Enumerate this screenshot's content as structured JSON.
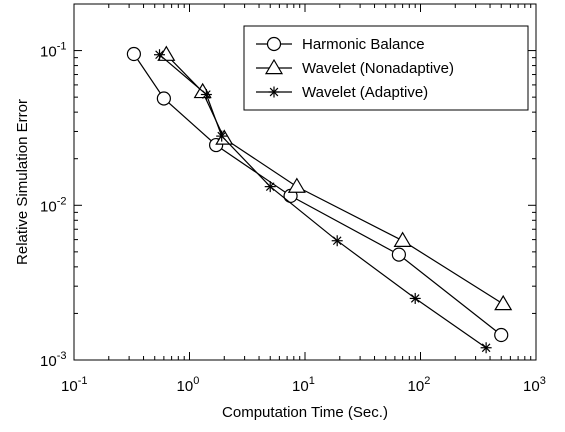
{
  "chart_data": {
    "type": "line",
    "xlabel": "Computation Time (Sec.)",
    "ylabel": "Relative Simulation Error",
    "xscale": "log",
    "yscale": "log",
    "xlim": [
      0.1,
      1000
    ],
    "ylim": [
      0.001,
      0.2
    ],
    "x_ticks": [
      {
        "base": "10",
        "exp": "-1",
        "value": 0.1
      },
      {
        "base": "10",
        "exp": "0",
        "value": 1
      },
      {
        "base": "10",
        "exp": "1",
        "value": 10
      },
      {
        "base": "10",
        "exp": "2",
        "value": 100
      },
      {
        "base": "10",
        "exp": "3",
        "value": 1000
      }
    ],
    "y_ticks": [
      {
        "base": "10",
        "exp": "-1",
        "value": 0.1
      },
      {
        "base": "10",
        "exp": "-2",
        "value": 0.01
      },
      {
        "base": "10",
        "exp": "-3",
        "value": 0.001
      }
    ],
    "legend_position": "top-right",
    "series": [
      {
        "name": "Harmonic Balance",
        "marker": "circle",
        "color": "#000000",
        "points": [
          [
            0.33,
            0.095
          ],
          [
            0.6,
            0.049
          ],
          [
            1.7,
            0.0245
          ],
          [
            7.5,
            0.0115
          ],
          [
            65,
            0.0048
          ],
          [
            500,
            0.00145
          ]
        ]
      },
      {
        "name": "Wavelet (Nonadaptive)",
        "marker": "triangle",
        "color": "#000000",
        "points": [
          [
            0.63,
            0.094
          ],
          [
            1.3,
            0.054
          ],
          [
            2.0,
            0.027
          ],
          [
            8.5,
            0.0132
          ],
          [
            70,
            0.0059
          ],
          [
            520,
            0.0023
          ]
        ]
      },
      {
        "name": "Wavelet (Adaptive)",
        "marker": "asterisk",
        "color": "#000000",
        "points": [
          [
            0.55,
            0.094
          ],
          [
            1.4,
            0.052
          ],
          [
            1.9,
            0.028
          ],
          [
            5.0,
            0.0132
          ],
          [
            19,
            0.0059
          ],
          [
            90,
            0.0025
          ],
          [
            370,
            0.0012
          ]
        ]
      }
    ]
  }
}
